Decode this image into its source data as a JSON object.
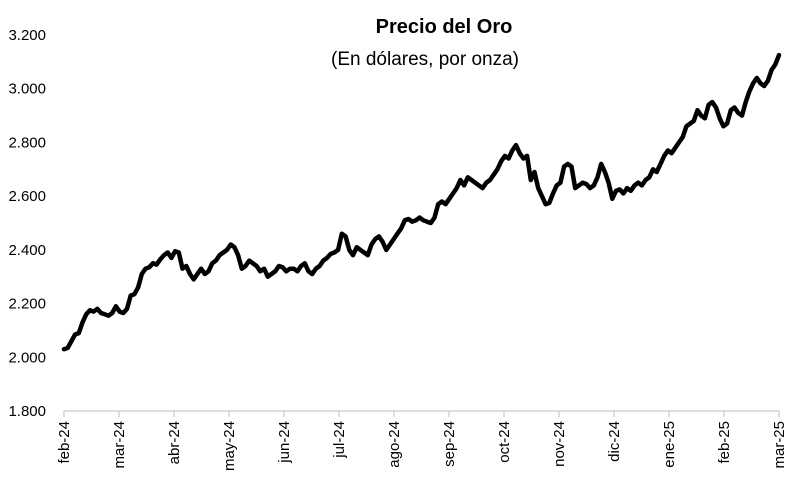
{
  "chart_data": {
    "type": "line",
    "title": "Precio del Oro",
    "subtitle": "(En dólares, por onza)",
    "xlabel": "",
    "ylabel": "",
    "ylim": [
      1800,
      3200
    ],
    "y_ticks": [
      1800,
      2000,
      2200,
      2400,
      2600,
      2800,
      3000,
      3200
    ],
    "y_tick_labels": [
      "1.800",
      "2.000",
      "2.200",
      "2.400",
      "2.600",
      "2.800",
      "3.000",
      "3.200"
    ],
    "x_tick_labels": [
      "feb-24",
      "mar-24",
      "abr-24",
      "may-24",
      "jun-24",
      "jul-24",
      "ago-24",
      "sep-24",
      "oct-24",
      "nov-24",
      "dic-24",
      "ene-25",
      "feb-25",
      "mar-25"
    ],
    "grid": false,
    "legend": "none",
    "line_color": "#000000",
    "series": [
      {
        "values": [
          2030,
          2035,
          2060,
          2085,
          2090,
          2130,
          2160,
          2175,
          2170,
          2180,
          2165,
          2160,
          2155,
          2165,
          2190,
          2170,
          2165,
          2180,
          2230,
          2235,
          2260,
          2310,
          2330,
          2335,
          2350,
          2345,
          2365,
          2380,
          2390,
          2370,
          2395,
          2390,
          2330,
          2340,
          2310,
          2290,
          2310,
          2330,
          2310,
          2320,
          2350,
          2360,
          2380,
          2390,
          2400,
          2420,
          2410,
          2380,
          2330,
          2340,
          2360,
          2350,
          2340,
          2320,
          2330,
          2300,
          2310,
          2320,
          2340,
          2335,
          2320,
          2330,
          2330,
          2320,
          2340,
          2350,
          2320,
          2310,
          2330,
          2340,
          2360,
          2370,
          2385,
          2390,
          2400,
          2460,
          2450,
          2400,
          2380,
          2410,
          2400,
          2390,
          2380,
          2420,
          2440,
          2450,
          2430,
          2400,
          2420,
          2440,
          2460,
          2480,
          2510,
          2515,
          2505,
          2510,
          2520,
          2510,
          2505,
          2500,
          2520,
          2570,
          2580,
          2570,
          2590,
          2610,
          2630,
          2660,
          2640,
          2670,
          2660,
          2650,
          2640,
          2630,
          2650,
          2660,
          2680,
          2700,
          2730,
          2750,
          2740,
          2770,
          2790,
          2760,
          2740,
          2750,
          2660,
          2690,
          2630,
          2600,
          2570,
          2575,
          2610,
          2640,
          2650,
          2710,
          2720,
          2710,
          2630,
          2640,
          2650,
          2645,
          2630,
          2640,
          2670,
          2720,
          2690,
          2650,
          2590,
          2620,
          2625,
          2610,
          2630,
          2620,
          2640,
          2650,
          2640,
          2660,
          2670,
          2700,
          2690,
          2720,
          2750,
          2770,
          2760,
          2780,
          2800,
          2820,
          2860,
          2870,
          2880,
          2920,
          2900,
          2890,
          2940,
          2950,
          2930,
          2890,
          2860,
          2870,
          2920,
          2930,
          2910,
          2900,
          2950,
          2990,
          3020,
          3040,
          3020,
          3010,
          3030,
          3070,
          3090,
          3125
        ]
      }
    ]
  }
}
